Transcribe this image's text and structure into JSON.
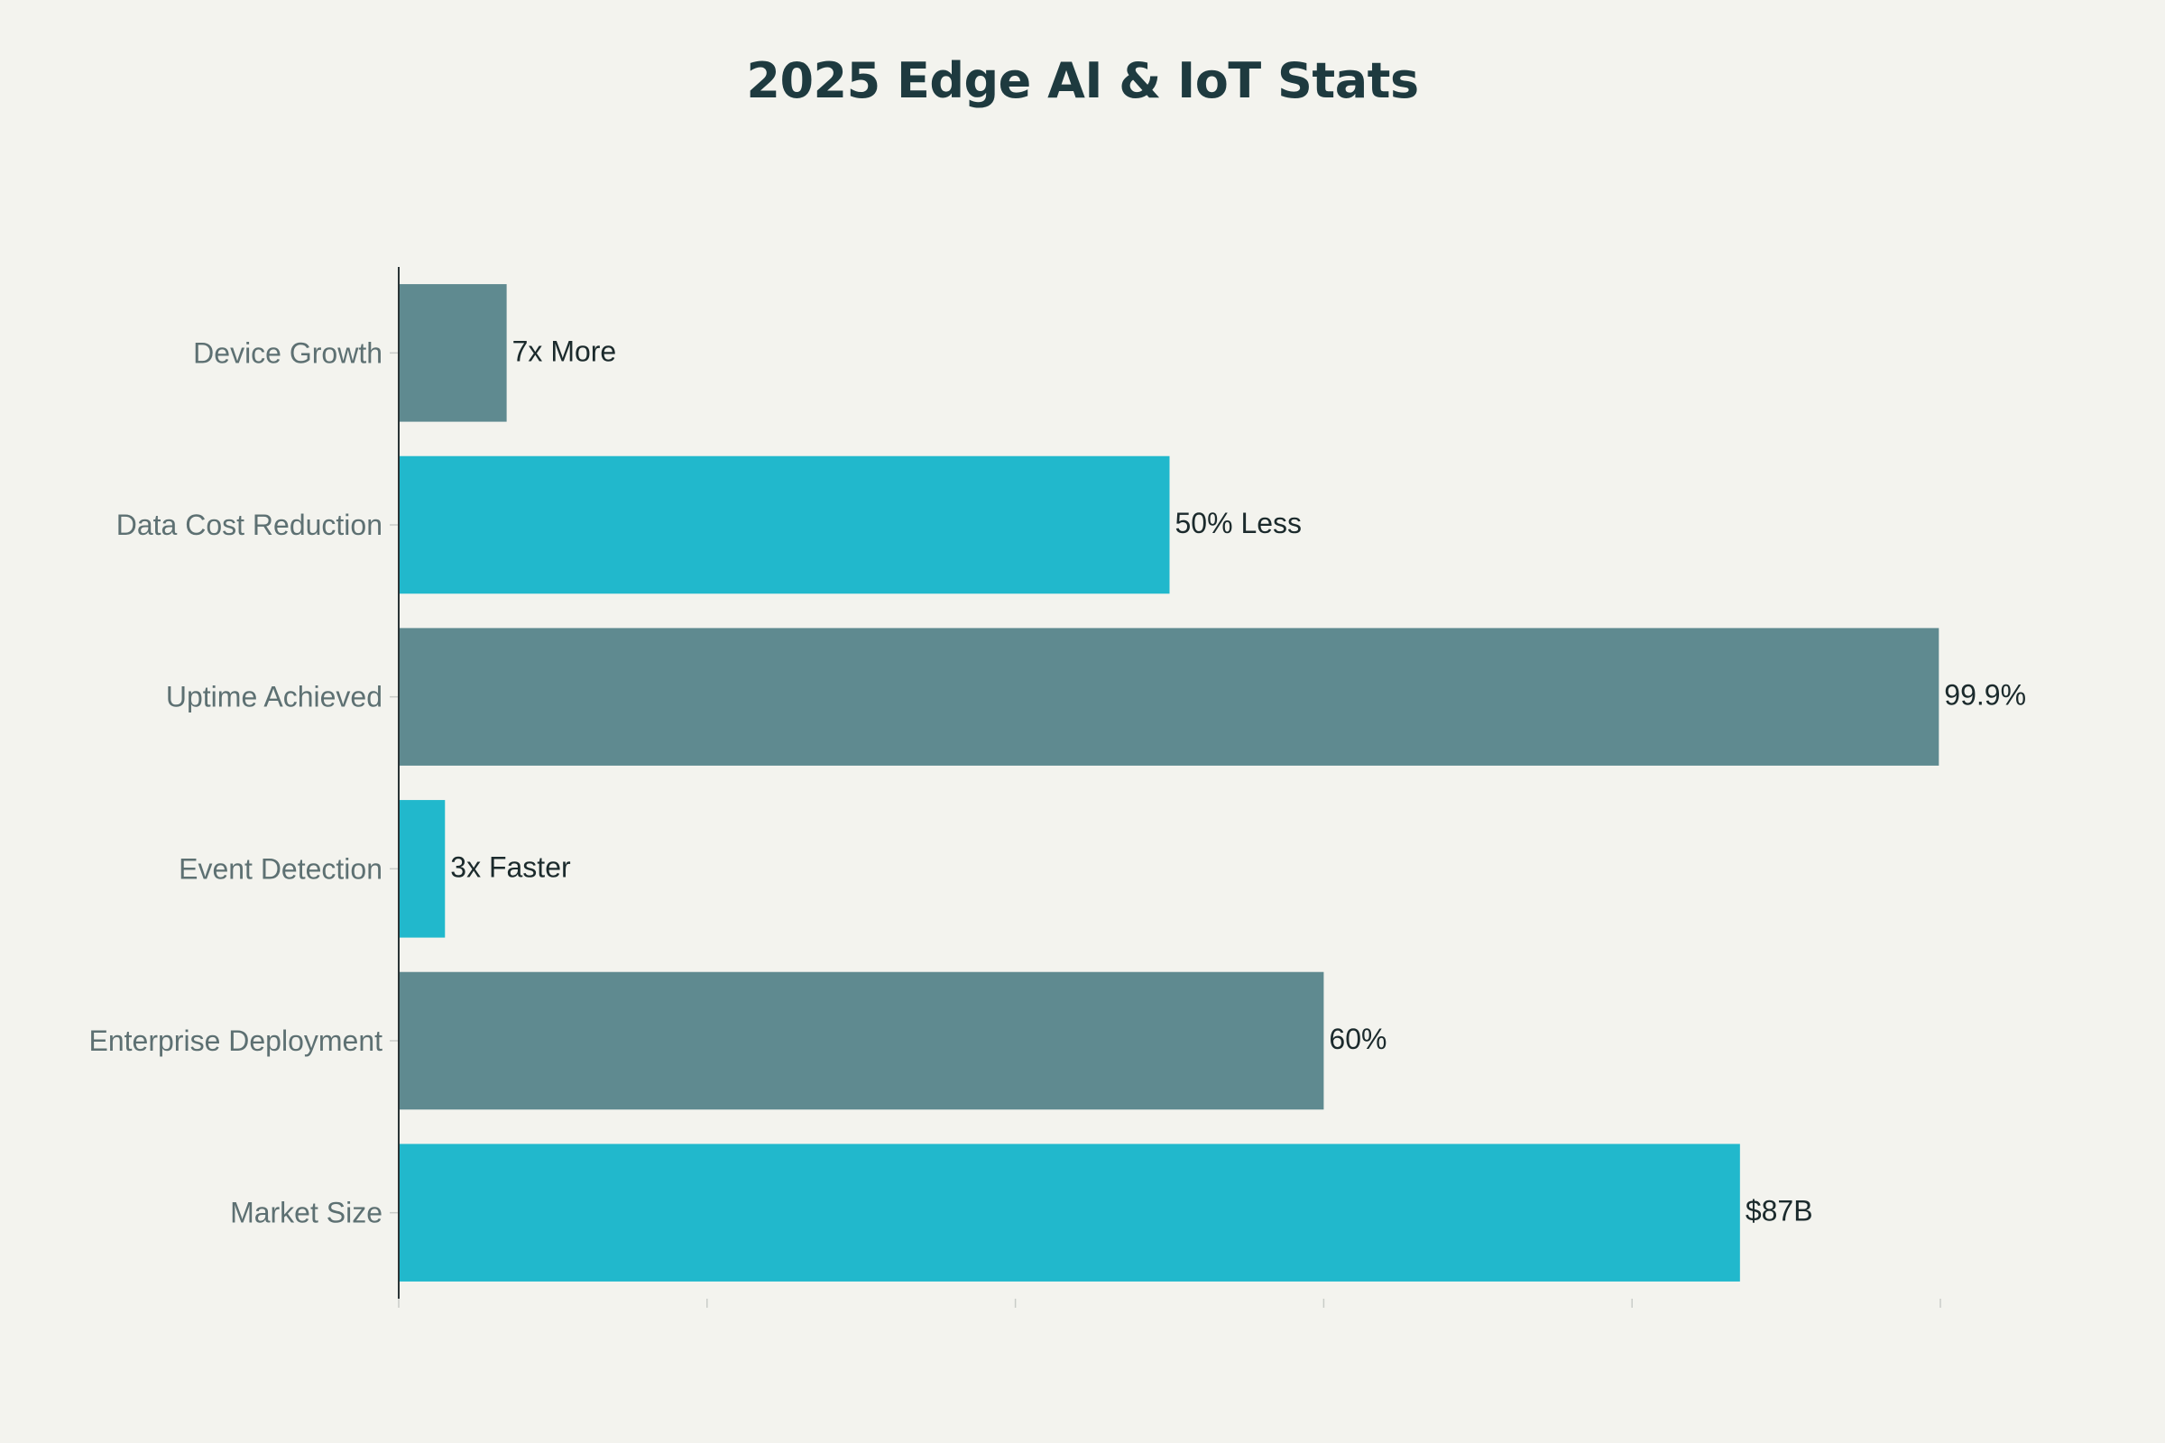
{
  "chart_data": {
    "type": "bar",
    "orientation": "horizontal",
    "title": "2025 Edge AI & IoT Stats",
    "xlabel": "",
    "ylabel": "",
    "categories": [
      "Device Growth",
      "Data Cost Reduction",
      "Uptime Achieved",
      "Event Detection",
      "Enterprise Deployment",
      "Market Size"
    ],
    "values": [
      7,
      50,
      99.9,
      3,
      60,
      87
    ],
    "labels": [
      "7x More",
      "50% Less",
      "99.9%",
      "3x Faster",
      "60%",
      "$87B"
    ],
    "xlim": [
      0,
      100
    ],
    "x_ticks": [
      0,
      20,
      40,
      60,
      80,
      100
    ],
    "show_tick_labels": false,
    "grid": false,
    "colors": [
      "#5f8a90",
      "#21b8cc"
    ],
    "color_pattern": "alternating"
  }
}
